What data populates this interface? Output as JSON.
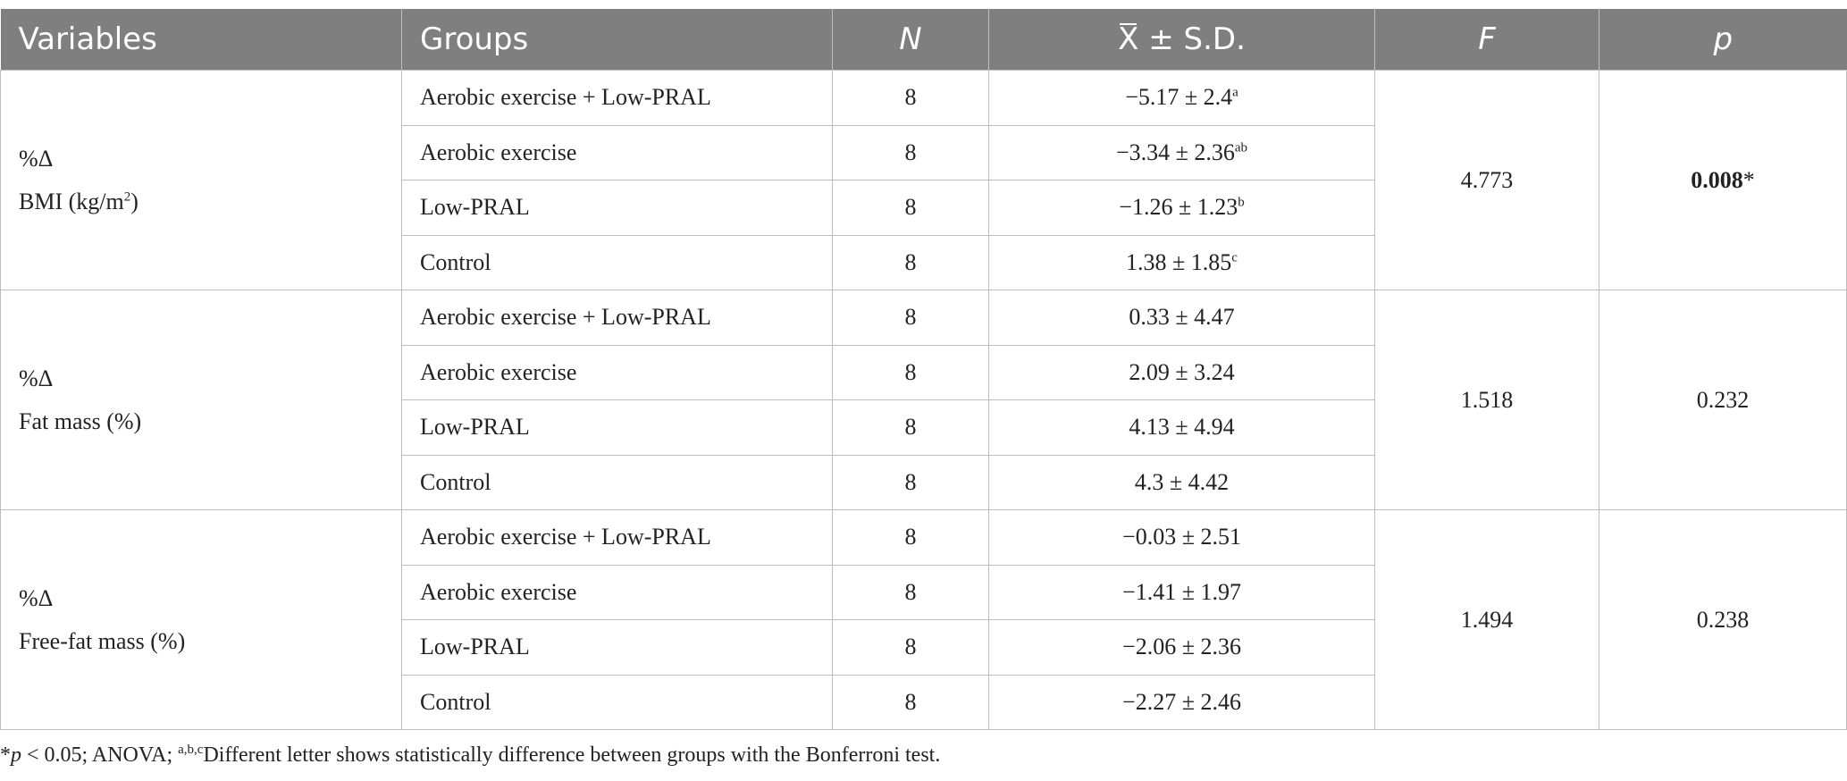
{
  "table": {
    "headers": {
      "variables": "Variables",
      "groups": "Groups",
      "n": "N",
      "mean_sd_bar": "X",
      "mean_sd_rest": " ± S.D.",
      "f": "F",
      "p": "p"
    },
    "sections": [
      {
        "var_line1": "%Δ",
        "var_line2_base": "BMI (kg/m",
        "var_line2_sup": "2",
        "var_line2_end": ")",
        "f": "4.773",
        "p_value": "0.008",
        "p_mark": "*",
        "rows": [
          {
            "group": "Aerobic exercise + Low-PRAL",
            "n": "8",
            "mean_sd": "−5.17 ± 2.4",
            "sup": "a"
          },
          {
            "group": "Aerobic exercise",
            "n": "8",
            "mean_sd": "−3.34 ± 2.36",
            "sup": "ab"
          },
          {
            "group": "Low-PRAL",
            "n": "8",
            "mean_sd": "−1.26 ± 1.23",
            "sup": "b"
          },
          {
            "group": "Control",
            "n": "8",
            "mean_sd": "1.38 ± 1.85",
            "sup": "c"
          }
        ]
      },
      {
        "var_line1": "%Δ",
        "var_line2": "Fat mass (%)",
        "f": "1.518",
        "p_value": "0.232",
        "rows": [
          {
            "group": "Aerobic exercise + Low-PRAL",
            "n": "8",
            "mean_sd": "0.33 ± 4.47"
          },
          {
            "group": "Aerobic exercise",
            "n": "8",
            "mean_sd": "2.09 ± 3.24"
          },
          {
            "group": "Low-PRAL",
            "n": "8",
            "mean_sd": "4.13 ± 4.94"
          },
          {
            "group": "Control",
            "n": "8",
            "mean_sd": "4.3 ± 4.42"
          }
        ]
      },
      {
        "var_line1": "%Δ",
        "var_line2": "Free-fat mass (%)",
        "f": "1.494",
        "p_value": "0.238",
        "rows": [
          {
            "group": "Aerobic exercise + Low-PRAL",
            "n": "8",
            "mean_sd": "−0.03 ± 2.51"
          },
          {
            "group": "Aerobic exercise",
            "n": "8",
            "mean_sd": "−1.41 ± 1.97"
          },
          {
            "group": "Low-PRAL",
            "n": "8",
            "mean_sd": "−2.06 ± 2.36"
          },
          {
            "group": "Control",
            "n": "8",
            "mean_sd": "−2.27 ± 2.46"
          }
        ]
      }
    ]
  },
  "footnote": {
    "star": "*",
    "p_symbol": "p",
    "part1": " < 0.05; ANOVA; ",
    "letters": "a,b,c",
    "part2": "Different letter shows statistically difference between groups with the Bonferroni test."
  }
}
